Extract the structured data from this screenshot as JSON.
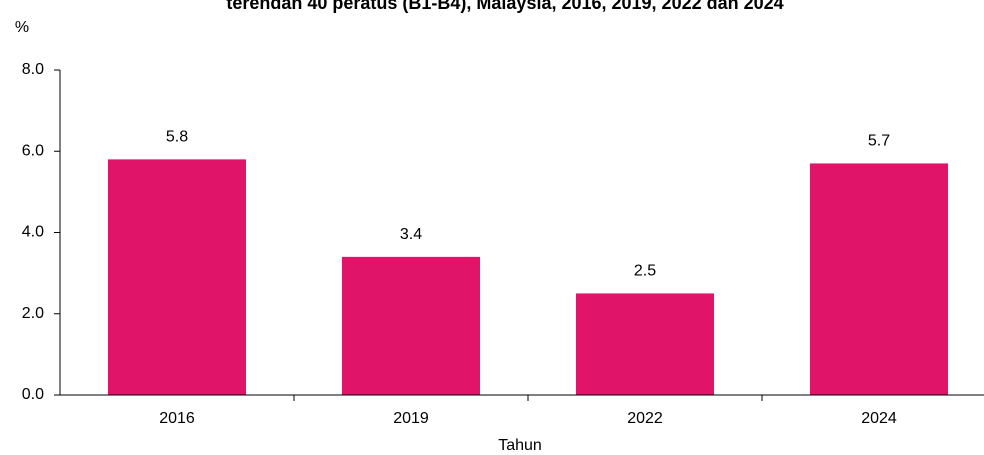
{
  "chart_data": {
    "type": "bar",
    "title": "terendah 40 peratus (B1-B4), Malaysia, 2016, 2019, 2022 dan 2024",
    "y_label": "%",
    "x_label": "Tahun",
    "categories": [
      "2016",
      "2019",
      "2022",
      "2024"
    ],
    "values": [
      5.8,
      3.4,
      2.5,
      5.7
    ],
    "color": "#e0156a",
    "ylim": [
      0,
      8
    ],
    "yticks": [
      {
        "value": 0,
        "label": "0.0"
      },
      {
        "value": 2,
        "label": "2.0"
      },
      {
        "value": 4,
        "label": "4.0"
      },
      {
        "value": 6,
        "label": "6.0"
      },
      {
        "value": 8,
        "label": "8.0"
      }
    ],
    "grid": false
  }
}
